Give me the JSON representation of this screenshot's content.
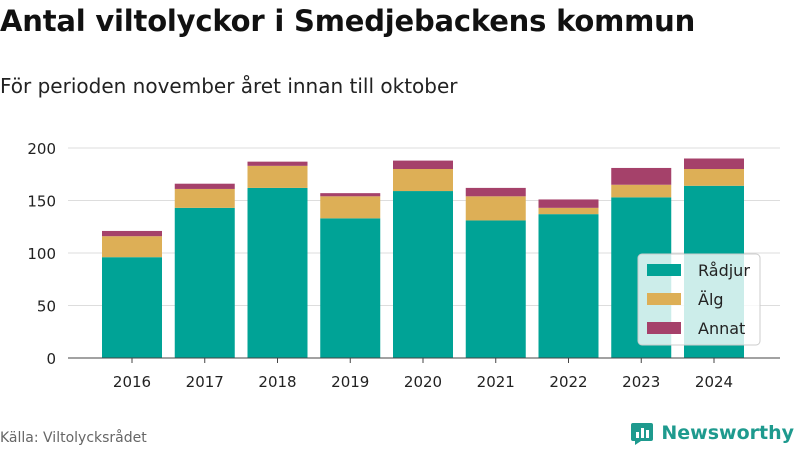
{
  "header": {
    "title": "Antal viltolyckor i Smedjebackens kommun",
    "subtitle": "För perioden november året innan till oktober"
  },
  "footer": {
    "source": "Källa: Viltolycksrådet",
    "brand": "Newsworthy"
  },
  "colors": {
    "Rådjur": "#00a396",
    "Älg": "#ddaf56",
    "Annat": "#a5416a",
    "grid": "#dddddd",
    "brand": "#1e9a8e"
  },
  "chart_data": {
    "type": "bar",
    "stacked": true,
    "categories": [
      "2016",
      "2017",
      "2018",
      "2019",
      "2020",
      "2021",
      "2022",
      "2023",
      "2024"
    ],
    "series": [
      {
        "name": "Rådjur",
        "values": [
          96,
          143,
          162,
          133,
          159,
          131,
          137,
          153,
          164
        ]
      },
      {
        "name": "Älg",
        "values": [
          20,
          18,
          21,
          21,
          21,
          23,
          6,
          12,
          16
        ]
      },
      {
        "name": "Annat",
        "values": [
          5,
          5,
          4,
          3,
          8,
          8,
          8,
          16,
          10
        ]
      }
    ],
    "yticks": [
      0,
      50,
      100,
      150,
      200
    ],
    "ylim": [
      0,
      200
    ],
    "grid": true,
    "legend_position": "bottom-right"
  }
}
